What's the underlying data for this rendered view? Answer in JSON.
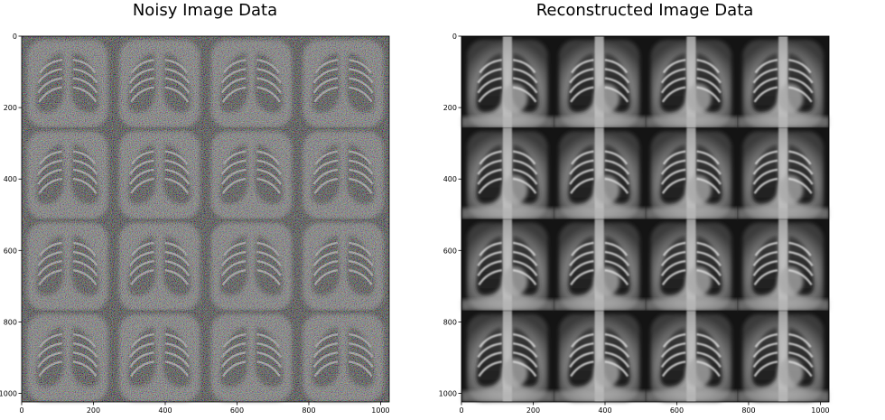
{
  "chart_data": [
    {
      "type": "image",
      "title": "Noisy Image Data",
      "xlim": [
        0,
        1024
      ],
      "ylim": [
        1024,
        0
      ],
      "xticks": [
        0,
        200,
        400,
        600,
        800,
        1000
      ],
      "yticks": [
        0,
        200,
        400,
        600,
        800,
        1000
      ],
      "xtick_labels": [
        "0",
        "200",
        "400",
        "600",
        "800",
        "1000"
      ],
      "ytick_labels": [
        "0",
        "200",
        "400",
        "600",
        "800",
        "1000"
      ],
      "grid_rows": 4,
      "grid_cols": 4,
      "content": "4x4 grid of noisy chest X-ray images"
    },
    {
      "type": "image",
      "title": "Reconstructed Image Data",
      "xlim": [
        0,
        1024
      ],
      "ylim": [
        1024,
        0
      ],
      "xticks": [
        0,
        200,
        400,
        600,
        800,
        1000
      ],
      "yticks": [
        0,
        200,
        400,
        600,
        800,
        1000
      ],
      "xtick_labels": [
        "0",
        "200",
        "400",
        "600",
        "800",
        "1000"
      ],
      "ytick_labels": [
        "0",
        "200",
        "400",
        "600",
        "800",
        "1000"
      ],
      "grid_rows": 4,
      "grid_cols": 4,
      "content": "4x4 grid of denoised chest X-ray images"
    }
  ]
}
